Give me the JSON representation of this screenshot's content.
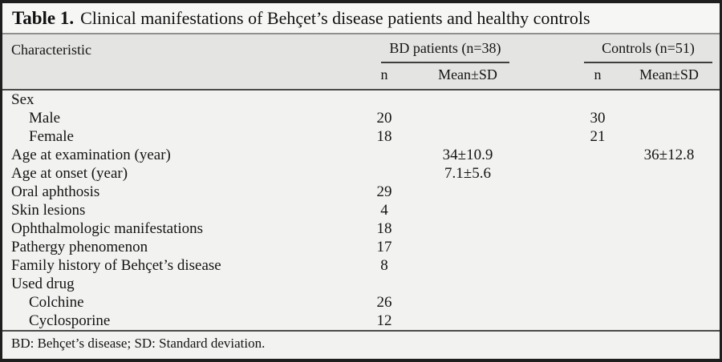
{
  "title": {
    "label": "Table 1.",
    "text": "Clinical manifestations of Behçet’s disease patients and healthy controls"
  },
  "table": {
    "characteristic_header": "Characteristic",
    "groups": [
      {
        "label": "BD patients (n=38)",
        "sub": [
          "n",
          "Mean±SD"
        ]
      },
      {
        "label": "Controls (n=51)",
        "sub": [
          "n",
          "Mean±SD"
        ]
      }
    ],
    "rows": [
      {
        "label": "Sex",
        "indent": false,
        "values": [
          "",
          "",
          "",
          ""
        ]
      },
      {
        "label": "Male",
        "indent": true,
        "values": [
          "20",
          "",
          "30",
          ""
        ]
      },
      {
        "label": "Female",
        "indent": true,
        "values": [
          "18",
          "",
          "21",
          ""
        ]
      },
      {
        "label": "Age at examination (year)",
        "indent": false,
        "values": [
          "",
          "34±10.9",
          "",
          "36±12.8"
        ]
      },
      {
        "label": "Age at onset (year)",
        "indent": false,
        "values": [
          "",
          "7.1±5.6",
          "",
          ""
        ]
      },
      {
        "label": "Oral aphthosis",
        "indent": false,
        "values": [
          "29",
          "",
          "",
          ""
        ]
      },
      {
        "label": "Skin lesions",
        "indent": false,
        "values": [
          "4",
          "",
          "",
          ""
        ]
      },
      {
        "label": "Ophthalmologic manifestations",
        "indent": false,
        "values": [
          "18",
          "",
          "",
          ""
        ]
      },
      {
        "label": "Pathergy phenomenon",
        "indent": false,
        "values": [
          "17",
          "",
          "",
          ""
        ]
      },
      {
        "label": "Family history of Behçet’s disease",
        "indent": false,
        "values": [
          "8",
          "",
          "",
          ""
        ]
      },
      {
        "label": "Used drug",
        "indent": false,
        "values": [
          "",
          "",
          "",
          ""
        ]
      },
      {
        "label": "Colchine",
        "indent": true,
        "values": [
          "26",
          "",
          "",
          ""
        ]
      },
      {
        "label": "Cyclosporine",
        "indent": true,
        "values": [
          "12",
          "",
          "",
          ""
        ]
      }
    ],
    "footnote": "BD: Behçet’s disease; SD: Standard deviation."
  },
  "colors": {
    "frame_border": "#1e1e1e",
    "title_background": "#f6f6f4",
    "header_background": "#e4e4e2",
    "body_background": "#f2f2f0",
    "light_rule": "#8f8f8f",
    "dark_rule": "#4a4a4a",
    "text": "#141414"
  }
}
